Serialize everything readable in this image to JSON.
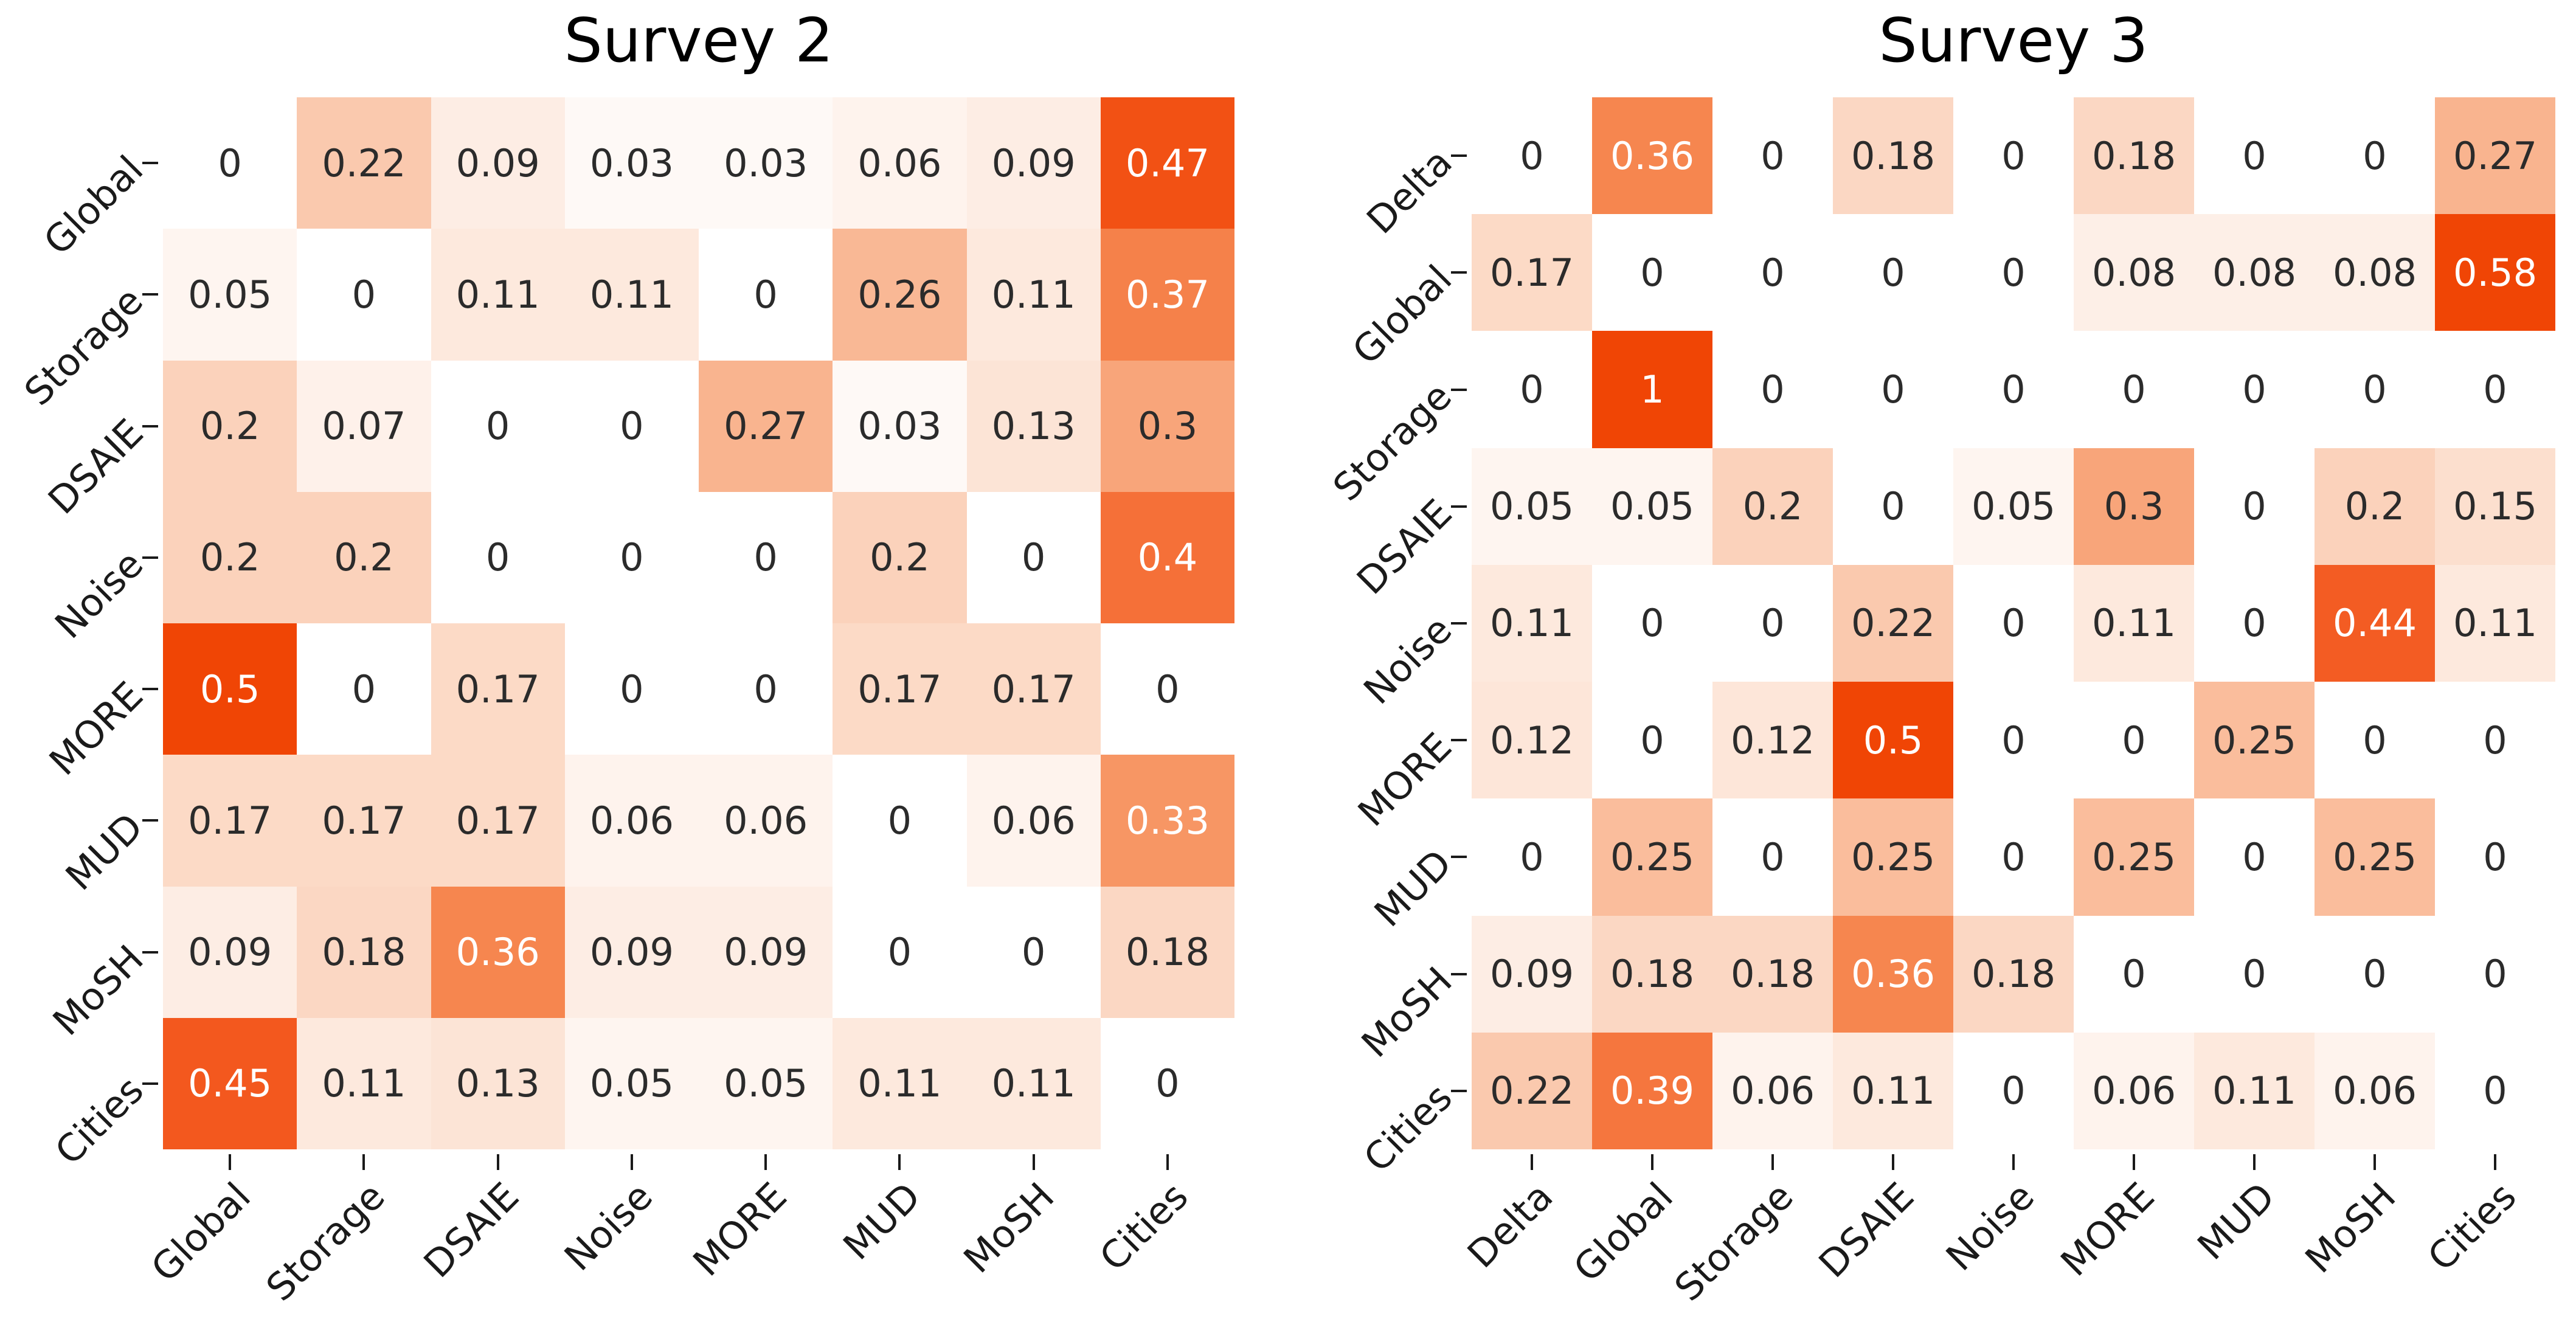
{
  "chart_data": [
    {
      "type": "heatmap",
      "title": "Survey 2",
      "x_labels": [
        "Global",
        "Storage",
        "DSAIE",
        "Noise",
        "MORE",
        "MUD",
        "MoSH",
        "Cities"
      ],
      "y_labels": [
        "Global",
        "Storage",
        "DSAIE",
        "Noise",
        "MORE",
        "MUD",
        "MoSH",
        "Cities"
      ],
      "values": [
        [
          "0",
          "0.22",
          "0.09",
          "0.03",
          "0.03",
          "0.06",
          "0.09",
          "0.47"
        ],
        [
          "0.05",
          "0",
          "0.11",
          "0.11",
          "0",
          "0.26",
          "0.11",
          "0.37"
        ],
        [
          "0.2",
          "0.07",
          "0",
          "0",
          "0.27",
          "0.03",
          "0.13",
          "0.3"
        ],
        [
          "0.2",
          "0.2",
          "0",
          "0",
          "0",
          "0.2",
          "0",
          "0.4"
        ],
        [
          "0.5",
          "0",
          "0.17",
          "0",
          "0",
          "0.17",
          "0.17",
          "0"
        ],
        [
          "0.17",
          "0.17",
          "0.17",
          "0.06",
          "0.06",
          "0",
          "0.06",
          "0.33"
        ],
        [
          "0.09",
          "0.18",
          "0.36",
          "0.09",
          "0.09",
          "0",
          "0",
          "0.18"
        ],
        [
          "0.45",
          "0.11",
          "0.13",
          "0.05",
          "0.05",
          "0.11",
          "0.11",
          "0"
        ]
      ]
    },
    {
      "type": "heatmap",
      "title": "Survey 3",
      "x_labels": [
        "Delta",
        "Global",
        "Storage",
        "DSAIE",
        "Noise",
        "MORE",
        "MUD",
        "MoSH",
        "Cities"
      ],
      "y_labels": [
        "Delta",
        "Global",
        "Storage",
        "DSAIE",
        "Noise",
        "MORE",
        "MUD",
        "MoSH",
        "Cities"
      ],
      "values": [
        [
          "0",
          "0.36",
          "0",
          "0.18",
          "0",
          "0.18",
          "0",
          "0",
          "0.27"
        ],
        [
          "0.17",
          "0",
          "0",
          "0",
          "0",
          "0.08",
          "0.08",
          "0.08",
          "0.58"
        ],
        [
          "0",
          "1",
          "0",
          "0",
          "0",
          "0",
          "0",
          "0",
          "0"
        ],
        [
          "0.05",
          "0.05",
          "0.2",
          "0",
          "0.05",
          "0.3",
          "0",
          "0.2",
          "0.15"
        ],
        [
          "0.11",
          "0",
          "0",
          "0.22",
          "0",
          "0.11",
          "0",
          "0.44",
          "0.11"
        ],
        [
          "0.12",
          "0",
          "0.12",
          "0.5",
          "0",
          "0",
          "0.25",
          "0",
          "0"
        ],
        [
          "0",
          "0.25",
          "0",
          "0.25",
          "0",
          "0.25",
          "0",
          "0.25",
          "0"
        ],
        [
          "0.09",
          "0.18",
          "0.18",
          "0.36",
          "0.18",
          "0",
          "0",
          "0",
          "0"
        ],
        [
          "0.22",
          "0.39",
          "0.06",
          "0.11",
          "0",
          "0.06",
          "0.11",
          "0.06",
          "0"
        ]
      ]
    }
  ],
  "style": {
    "background": "#ffffff",
    "colormap_vmax": 0.5,
    "colormap_stops": [
      [
        0.0,
        "#ffffff"
      ],
      [
        0.2,
        "#fdebe1"
      ],
      [
        0.4,
        "#fbd2bb"
      ],
      [
        0.55,
        "#f9b28c"
      ],
      [
        0.7,
        "#f68c55"
      ],
      [
        0.85,
        "#f4622a"
      ],
      [
        1.0,
        "#f04505"
      ]
    ],
    "white_text_min_value": 0.33,
    "dark_text_color": "#2b2b2b",
    "light_text_color": "#ffffff",
    "tick_color": "#1a1a1a",
    "title_color": "#000000"
  }
}
